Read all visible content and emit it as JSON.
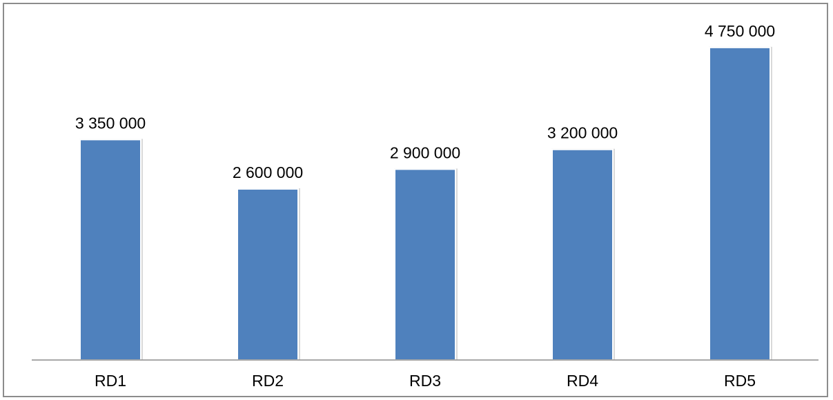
{
  "chart_data": {
    "type": "bar",
    "categories": [
      "RD1",
      "RD2",
      "RD3",
      "RD4",
      "RD5"
    ],
    "values": [
      3350000,
      2600000,
      2900000,
      3200000,
      4750000
    ],
    "data_labels": [
      "3 350 000",
      "2 600 000",
      "2 900 000",
      "3 200 000",
      "4 750 000"
    ],
    "title": "",
    "xlabel": "",
    "ylabel": "",
    "ylim": [
      0,
      5000000
    ],
    "grid": false,
    "legend": "none",
    "bar_color": "#4f81bd",
    "axis_color": "#8c8c8c"
  }
}
